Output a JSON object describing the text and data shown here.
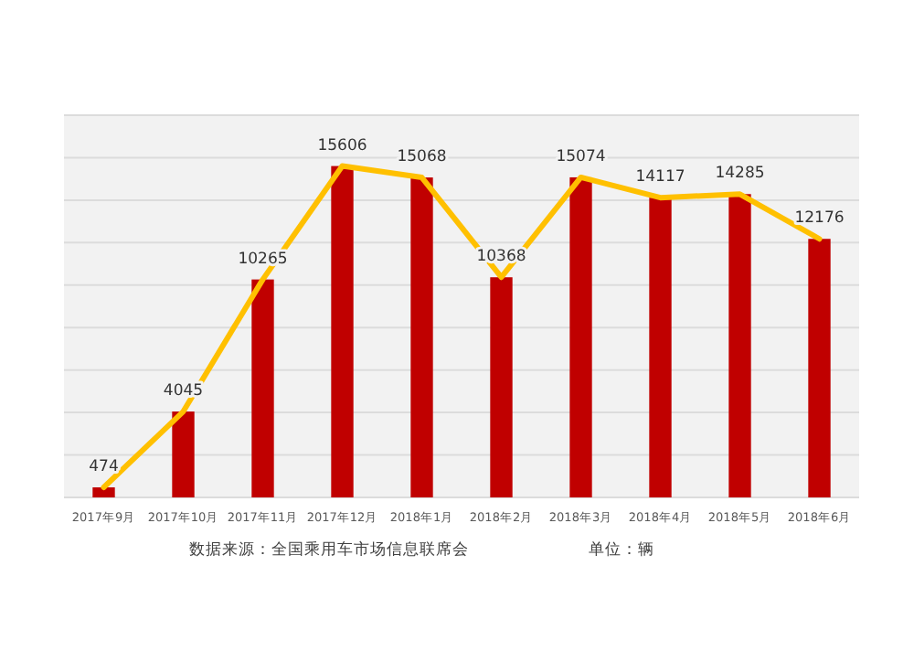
{
  "chart_data": {
    "type": "bar",
    "categories": [
      "2017年9月",
      "2017年10月",
      "2017年11月",
      "2017年12月",
      "2018年1月",
      "2018年2月",
      "2018年3月",
      "2018年4月",
      "2018年5月",
      "2018年6月"
    ],
    "series": [
      {
        "color": "#c00000",
        "values": [
          474,
          4045,
          10265,
          15606,
          15068,
          10368,
          15074,
          14117,
          14285,
          12176
        ],
        "value_labels": [
          "474",
          "4045",
          "10265",
          "15606",
          "15068",
          "10368",
          "15074",
          "14117",
          "14285",
          "12176"
        ]
      },
      {
        "type": "line",
        "color": "#ffc000",
        "values": [
          474,
          4045,
          10265,
          15606,
          15068,
          10368,
          15074,
          14117,
          14285,
          12176
        ]
      }
    ],
    "ylim": [
      0,
      18000
    ],
    "yticks": [
      {
        "value": 0,
        "label": null
      },
      {
        "value": 2000,
        "label": null
      },
      {
        "value": 4000,
        "label": null
      },
      {
        "value": 6000,
        "label": null
      },
      {
        "value": 8000,
        "label": null
      },
      {
        "value": 10000,
        "label": null
      },
      {
        "value": 12000,
        "label": null
      },
      {
        "value": 14000,
        "label": null
      },
      {
        "value": 16000,
        "label": null
      },
      {
        "value": 18000,
        "label": null
      }
    ],
    "grid": "y",
    "tick_labels": "x",
    "marker": "none",
    "line_style": "solid",
    "annotations": [
      "数据来源：全国乘用车市场信息联席会",
      "单位：辆"
    ]
  }
}
